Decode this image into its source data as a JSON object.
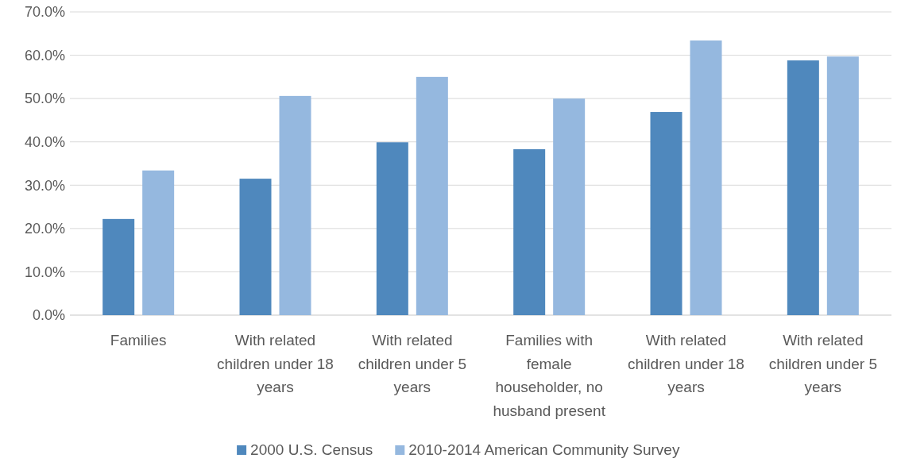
{
  "chart_data": {
    "type": "bar",
    "categories": [
      "Families",
      "With related children under 18 years",
      "With related children under 5 years",
      "Families with female householder, no husband present",
      "With related children under 18 years",
      "With related children under 5 years"
    ],
    "series": [
      {
        "name": "2000 U.S. Census",
        "color": "#4f88bd",
        "values": [
          22.2,
          31.5,
          39.9,
          38.3,
          46.9,
          58.8
        ]
      },
      {
        "name": "2010-2014 American Community Survey",
        "color": "#95b8df",
        "values": [
          33.4,
          50.6,
          55.0,
          50.0,
          63.4,
          59.7
        ]
      }
    ],
    "ylim": [
      0,
      70
    ],
    "yticks": [
      {
        "value": 0,
        "label": "0.0%"
      },
      {
        "value": 10,
        "label": "10.0%"
      },
      {
        "value": 20,
        "label": "20.0%"
      },
      {
        "value": 30,
        "label": "30.0%"
      },
      {
        "value": 40,
        "label": "40.0%"
      },
      {
        "value": 50,
        "label": "50.0%"
      },
      {
        "value": 60,
        "label": "60.0%"
      },
      {
        "value": 70,
        "label": "70.0%"
      }
    ],
    "grid": "y",
    "legend": "bottom"
  }
}
